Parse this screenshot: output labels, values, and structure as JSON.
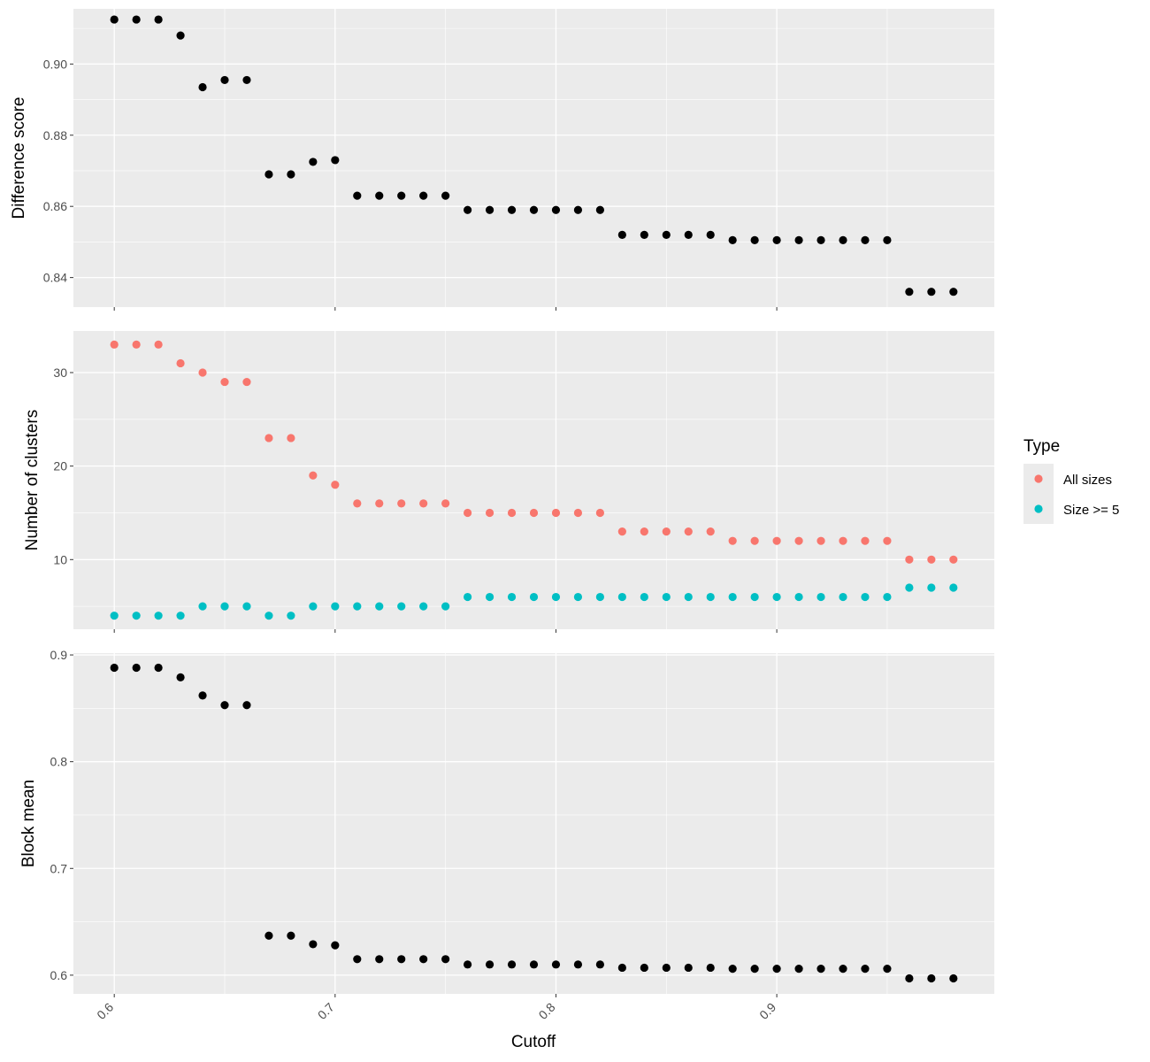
{
  "chart_data": [
    {
      "type": "scatter",
      "title": "",
      "xlabel": "",
      "ylabel": "Difference score",
      "xlim": [
        0.5815,
        0.9985
      ],
      "ylim": [
        0.8317,
        0.9155
      ],
      "x_ticks": [
        "0.6",
        "0.7",
        "0.8",
        "0.9"
      ],
      "y_ticks": [
        "0.84",
        "0.86",
        "0.88",
        "0.90"
      ],
      "y_tick_values": [
        0.84,
        0.86,
        0.88,
        0.9
      ],
      "series": [
        {
          "color": "#000000",
          "points": [
            [
              0.6,
              0.9125
            ],
            [
              0.61,
              0.9125
            ],
            [
              0.62,
              0.9125
            ],
            [
              0.63,
              0.908
            ],
            [
              0.64,
              0.8935
            ],
            [
              0.65,
              0.8955
            ],
            [
              0.66,
              0.8955
            ],
            [
              0.67,
              0.869
            ],
            [
              0.68,
              0.869
            ],
            [
              0.69,
              0.8725
            ],
            [
              0.7,
              0.873
            ],
            [
              0.71,
              0.863
            ],
            [
              0.72,
              0.863
            ],
            [
              0.73,
              0.863
            ],
            [
              0.74,
              0.863
            ],
            [
              0.75,
              0.863
            ],
            [
              0.76,
              0.859
            ],
            [
              0.77,
              0.859
            ],
            [
              0.78,
              0.859
            ],
            [
              0.79,
              0.859
            ],
            [
              0.8,
              0.859
            ],
            [
              0.81,
              0.859
            ],
            [
              0.82,
              0.859
            ],
            [
              0.83,
              0.852
            ],
            [
              0.84,
              0.852
            ],
            [
              0.85,
              0.852
            ],
            [
              0.86,
              0.852
            ],
            [
              0.87,
              0.852
            ],
            [
              0.88,
              0.8505
            ],
            [
              0.89,
              0.8505
            ],
            [
              0.9,
              0.8505
            ],
            [
              0.91,
              0.8505
            ],
            [
              0.92,
              0.8505
            ],
            [
              0.93,
              0.8505
            ],
            [
              0.94,
              0.8505
            ],
            [
              0.95,
              0.8505
            ],
            [
              0.96,
              0.836
            ],
            [
              0.97,
              0.836
            ],
            [
              0.98,
              0.836
            ]
          ]
        }
      ]
    },
    {
      "type": "scatter",
      "title": "",
      "xlabel": "",
      "ylabel": "Number of clusters",
      "xlim": [
        0.5815,
        0.9985
      ],
      "ylim": [
        2.55,
        34.45
      ],
      "x_ticks": [
        "0.6",
        "0.7",
        "0.8",
        "0.9"
      ],
      "y_ticks": [
        "10",
        "20",
        "30"
      ],
      "y_tick_values": [
        10,
        20,
        30
      ],
      "legend": {
        "title": "Type",
        "position": "right"
      },
      "series": [
        {
          "name": "All sizes",
          "color": "#F8766D",
          "points": [
            [
              0.6,
              33
            ],
            [
              0.61,
              33
            ],
            [
              0.62,
              33
            ],
            [
              0.63,
              31
            ],
            [
              0.64,
              30
            ],
            [
              0.65,
              29
            ],
            [
              0.66,
              29
            ],
            [
              0.67,
              23
            ],
            [
              0.68,
              23
            ],
            [
              0.69,
              19
            ],
            [
              0.7,
              18
            ],
            [
              0.71,
              16
            ],
            [
              0.72,
              16
            ],
            [
              0.73,
              16
            ],
            [
              0.74,
              16
            ],
            [
              0.75,
              16
            ],
            [
              0.76,
              15
            ],
            [
              0.77,
              15
            ],
            [
              0.78,
              15
            ],
            [
              0.79,
              15
            ],
            [
              0.8,
              15
            ],
            [
              0.81,
              15
            ],
            [
              0.82,
              15
            ],
            [
              0.83,
              13
            ],
            [
              0.84,
              13
            ],
            [
              0.85,
              13
            ],
            [
              0.86,
              13
            ],
            [
              0.87,
              13
            ],
            [
              0.88,
              12
            ],
            [
              0.89,
              12
            ],
            [
              0.9,
              12
            ],
            [
              0.91,
              12
            ],
            [
              0.92,
              12
            ],
            [
              0.93,
              12
            ],
            [
              0.94,
              12
            ],
            [
              0.95,
              12
            ],
            [
              0.96,
              10
            ],
            [
              0.97,
              10
            ],
            [
              0.98,
              10
            ]
          ]
        },
        {
          "name": "Size >= 5",
          "color": "#00BFC4",
          "points": [
            [
              0.6,
              4
            ],
            [
              0.61,
              4
            ],
            [
              0.62,
              4
            ],
            [
              0.63,
              4
            ],
            [
              0.64,
              5
            ],
            [
              0.65,
              5
            ],
            [
              0.66,
              5
            ],
            [
              0.67,
              4
            ],
            [
              0.68,
              4
            ],
            [
              0.69,
              5
            ],
            [
              0.7,
              5
            ],
            [
              0.71,
              5
            ],
            [
              0.72,
              5
            ],
            [
              0.73,
              5
            ],
            [
              0.74,
              5
            ],
            [
              0.75,
              5
            ],
            [
              0.76,
              6
            ],
            [
              0.77,
              6
            ],
            [
              0.78,
              6
            ],
            [
              0.79,
              6
            ],
            [
              0.8,
              6
            ],
            [
              0.81,
              6
            ],
            [
              0.82,
              6
            ],
            [
              0.83,
              6
            ],
            [
              0.84,
              6
            ],
            [
              0.85,
              6
            ],
            [
              0.86,
              6
            ],
            [
              0.87,
              6
            ],
            [
              0.88,
              6
            ],
            [
              0.89,
              6
            ],
            [
              0.9,
              6
            ],
            [
              0.91,
              6
            ],
            [
              0.92,
              6
            ],
            [
              0.93,
              6
            ],
            [
              0.94,
              6
            ],
            [
              0.95,
              6
            ],
            [
              0.96,
              7
            ],
            [
              0.97,
              7
            ],
            [
              0.98,
              7
            ]
          ]
        }
      ]
    },
    {
      "type": "scatter",
      "title": "",
      "xlabel": "Cutoff",
      "ylabel": "Block mean",
      "xlim": [
        0.5815,
        0.9985
      ],
      "ylim": [
        0.5825,
        0.9017
      ],
      "x_ticks": [
        "0.6",
        "0.7",
        "0.8",
        "0.9"
      ],
      "y_ticks": [
        "0.6",
        "0.7",
        "0.8",
        "0.9"
      ],
      "y_tick_values": [
        0.6,
        0.7,
        0.8,
        0.9
      ],
      "series": [
        {
          "color": "#000000",
          "points": [
            [
              0.6,
              0.888
            ],
            [
              0.61,
              0.888
            ],
            [
              0.62,
              0.888
            ],
            [
              0.63,
              0.879
            ],
            [
              0.64,
              0.862
            ],
            [
              0.65,
              0.853
            ],
            [
              0.66,
              0.853
            ],
            [
              0.67,
              0.637
            ],
            [
              0.68,
              0.637
            ],
            [
              0.69,
              0.629
            ],
            [
              0.7,
              0.628
            ],
            [
              0.71,
              0.615
            ],
            [
              0.72,
              0.615
            ],
            [
              0.73,
              0.615
            ],
            [
              0.74,
              0.615
            ],
            [
              0.75,
              0.615
            ],
            [
              0.76,
              0.61
            ],
            [
              0.77,
              0.61
            ],
            [
              0.78,
              0.61
            ],
            [
              0.79,
              0.61
            ],
            [
              0.8,
              0.61
            ],
            [
              0.81,
              0.61
            ],
            [
              0.82,
              0.61
            ],
            [
              0.83,
              0.607
            ],
            [
              0.84,
              0.607
            ],
            [
              0.85,
              0.607
            ],
            [
              0.86,
              0.607
            ],
            [
              0.87,
              0.607
            ],
            [
              0.88,
              0.606
            ],
            [
              0.89,
              0.606
            ],
            [
              0.9,
              0.606
            ],
            [
              0.91,
              0.606
            ],
            [
              0.92,
              0.606
            ],
            [
              0.93,
              0.606
            ],
            [
              0.94,
              0.606
            ],
            [
              0.95,
              0.606
            ],
            [
              0.96,
              0.597
            ],
            [
              0.97,
              0.597
            ],
            [
              0.98,
              0.597
            ]
          ]
        }
      ]
    }
  ]
}
